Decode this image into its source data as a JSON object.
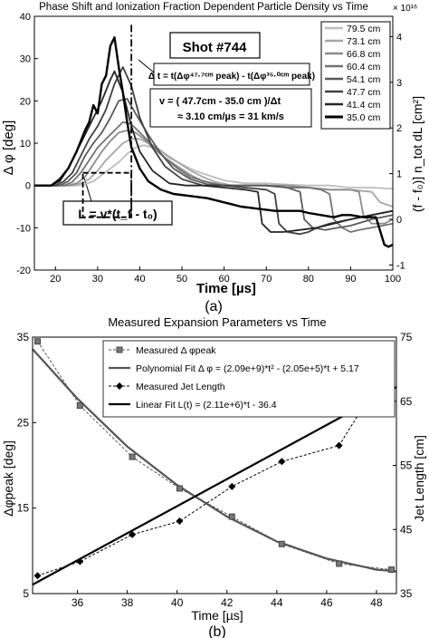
{
  "chart_data": [
    {
      "type": "line",
      "title": "Phase Shift and Ionization Fraction Dependent Particle Density vs Time",
      "panel_label": "(a)",
      "xlabel": "Time [µs]",
      "ylabel": "Δ φ [deg]",
      "ylabel_right": "(f - f₀)] n_tot dL [cm²]",
      "right_axis_multiplier": "× 10¹⁶",
      "xlim": [
        15,
        100
      ],
      "ylim": [
        -20,
        40
      ],
      "ylim_right": [
        -1.111,
        4.444
      ],
      "x_ticks": [
        20,
        30,
        40,
        50,
        60,
        70,
        80,
        90,
        100
      ],
      "y_ticks": [
        -20,
        -10,
        0,
        10,
        20,
        30,
        40
      ],
      "y_ticks_right": [
        -1,
        0,
        1,
        2,
        3,
        4
      ],
      "grid": false,
      "legend_position": "top-right",
      "annotations": {
        "shot": "Shot #744",
        "delta_t": "Δ t = t(Δφ⁴⁷·⁷ᶜᵐ peak) - t(Δφ³⁵·⁰ᶜᵐ peak)",
        "velocity_1": "v = ( 47.7cm - 35.0 cm )/Δt",
        "velocity_2": "≈ 3.10 cm/µs = 31 km/s",
        "length": "L = v*(t_f - t₀)"
      },
      "series": [
        {
          "name": "79.5 cm",
          "color": "#bdbdbd",
          "width": 1.8,
          "x": [
            15,
            25,
            27,
            29,
            31,
            33,
            35,
            37,
            39,
            41,
            43,
            45,
            47,
            50,
            53,
            56,
            60,
            65,
            70,
            75,
            80,
            85,
            90,
            95,
            100
          ],
          "y": [
            0,
            0,
            0.3,
            1,
            2.5,
            4,
            5.5,
            7.5,
            9,
            9.5,
            9,
            8,
            6.5,
            5,
            3.5,
            2.5,
            1.2,
            0.5,
            0.5,
            0.2,
            0,
            0,
            -0.5,
            -0.5,
            -0.8
          ]
        },
        {
          "name": "73.1 cm",
          "color": "#a6a6a6",
          "width": 1.8,
          "x": [
            15,
            24,
            26,
            28,
            30,
            32,
            34,
            36,
            38,
            40,
            42,
            44,
            46,
            49,
            52,
            55,
            58,
            62,
            66,
            70,
            75,
            80,
            85,
            90,
            95,
            97,
            100
          ],
          "y": [
            0,
            0,
            0.5,
            1.5,
            3.5,
            6,
            8,
            10,
            11,
            11,
            10,
            9,
            7.5,
            5.5,
            3.5,
            2,
            0.8,
            0,
            0,
            0,
            -0.5,
            -0.5,
            -1,
            -1,
            -1.5,
            -4,
            -5
          ]
        },
        {
          "name": "66.8 cm",
          "color": "#8c8c8c",
          "width": 1.8,
          "x": [
            15,
            23,
            25,
            27,
            29,
            31,
            33,
            35,
            37,
            39,
            41,
            43,
            46,
            49,
            52,
            55,
            60,
            65,
            70,
            75,
            80,
            85,
            90,
            92,
            93,
            95,
            98,
            100
          ],
          "y": [
            0,
            0,
            0.5,
            2,
            5,
            8,
            10.5,
            12.5,
            13,
            12.5,
            11,
            9,
            6.5,
            4.5,
            2.5,
            1,
            0,
            0,
            0,
            0,
            -0.5,
            -1,
            -1,
            -1.5,
            -7,
            -9,
            -9,
            -8
          ]
        },
        {
          "name": "60.4 cm",
          "color": "#737373",
          "width": 1.8,
          "x": [
            15,
            22,
            24,
            26,
            28,
            30,
            32,
            34,
            36,
            38,
            40,
            43,
            46,
            49,
            52,
            56,
            60,
            65,
            70,
            75,
            80,
            83,
            85,
            86,
            88,
            90,
            92,
            95,
            100
          ],
          "y": [
            0,
            0,
            0.8,
            3,
            6,
            9,
            11,
            13,
            15,
            14.5,
            12.5,
            9.5,
            6.5,
            4,
            2,
            0.8,
            0,
            0,
            0,
            -0.5,
            -0.5,
            -1,
            -2,
            -8,
            -10,
            -11,
            -10.5,
            -10,
            -9
          ]
        },
        {
          "name": "54.1 cm",
          "color": "#5a5a5a",
          "width": 1.8,
          "x": [
            15,
            21,
            23,
            25,
            27,
            29,
            31,
            33,
            35,
            37,
            39,
            42,
            45,
            48,
            52,
            56,
            60,
            65,
            70,
            75,
            78,
            79,
            81,
            84,
            87,
            90,
            95,
            100
          ],
          "y": [
            0,
            0,
            1,
            3,
            7,
            10,
            12.5,
            16,
            20,
            20.5,
            17,
            12,
            7.5,
            4,
            1.5,
            0.3,
            0,
            0,
            0,
            -0.5,
            -1.5,
            -8,
            -10,
            -10.5,
            -10,
            -9.5,
            -8,
            -7
          ]
        },
        {
          "name": "47.7 cm",
          "color": "#404040",
          "width": 1.8,
          "x": [
            15,
            20,
            22,
            24,
            26,
            28,
            30,
            32,
            34,
            36,
            38,
            40,
            43,
            46,
            50,
            55,
            60,
            65,
            70,
            72,
            73,
            75,
            78,
            80,
            82,
            85,
            90,
            95,
            100
          ],
          "y": [
            0,
            0,
            1,
            3,
            7,
            11,
            14,
            18,
            24,
            28,
            23.5,
            16,
            9,
            4.5,
            1.5,
            0,
            0,
            -0.5,
            -1,
            -2,
            -9,
            -11,
            -11.5,
            -11,
            -10,
            -9,
            -8,
            -7,
            -6
          ]
        },
        {
          "name": "41.4 cm",
          "color": "#262626",
          "width": 1.8,
          "x": [
            15,
            19,
            21,
            23,
            25,
            27,
            29,
            31,
            33,
            34,
            36,
            38,
            40,
            43,
            47,
            51,
            55,
            60,
            65,
            68,
            69,
            71,
            74,
            78,
            82,
            86,
            90,
            95,
            100
          ],
          "y": [
            0,
            0,
            1,
            4,
            8,
            12,
            16,
            20,
            25,
            27,
            22,
            14,
            8,
            3.5,
            0.5,
            0,
            0,
            -0.5,
            -1,
            -1.5,
            -9,
            -11,
            -11,
            -10.5,
            -10,
            -9,
            -8,
            -7,
            -6
          ]
        },
        {
          "name": "35.0 cm",
          "color": "#000000",
          "width": 2.4,
          "x": [
            15,
            19,
            21,
            23,
            25,
            27,
            28,
            29,
            30,
            31,
            32,
            33,
            34,
            35,
            36,
            37,
            38,
            40,
            42,
            45,
            48,
            52,
            56,
            60,
            64,
            68,
            72,
            76,
            78,
            80,
            83,
            86,
            88,
            90,
            93,
            96,
            98,
            99,
            100
          ],
          "y": [
            0,
            0,
            1.5,
            4,
            8,
            13,
            15,
            19,
            17,
            24,
            26,
            33,
            35,
            28,
            22,
            15,
            9,
            4,
            1,
            -1,
            -2,
            -2.5,
            -3,
            -4,
            -5,
            -5.5,
            -6,
            -6,
            -6,
            -6.5,
            -7,
            -7.5,
            -7,
            -7,
            -7.5,
            -7.5,
            -14,
            -14.5,
            -14
          ]
        }
      ]
    },
    {
      "type": "line",
      "title": "Measured Expansion Parameters vs Time",
      "panel_label": "(b)",
      "xlabel": "Time  [µs]",
      "ylabel": "Δφpeak [deg]",
      "ylabel_right": "Jet Length [cm]",
      "xlim": [
        34.2,
        48.8
      ],
      "ylim": [
        5,
        35
      ],
      "ylim_right": [
        35,
        75
      ],
      "x_ticks": [
        36,
        38,
        40,
        42,
        44,
        46,
        48
      ],
      "y_ticks": [
        5,
        15,
        25,
        35
      ],
      "y_ticks_right": [
        35,
        45,
        55,
        65,
        75
      ],
      "grid": false,
      "legend_position": "top-right",
      "series": [
        {
          "name": "Measured Δ φpeak",
          "axis": "left",
          "color": "#555555",
          "style": "dash-square",
          "x": [
            34.4,
            36.1,
            38.2,
            40.1,
            42.2,
            44.2,
            46.5,
            48.6
          ],
          "y": [
            34.5,
            27,
            21,
            17.3,
            14,
            10.8,
            8.5,
            7.8
          ]
        },
        {
          "name": "Polynomial Fit Δ φ = (2.09e+9)*t² - (2.05e+5)*t + 5.17",
          "axis": "left",
          "color": "#555555",
          "style": "solid-thick",
          "x": [
            34.2,
            36,
            38,
            40,
            42,
            44,
            46,
            48,
            48.8
          ],
          "y": [
            33.6,
            27.8,
            22.2,
            17.7,
            14,
            11.1,
            9.1,
            7.8,
            7.6
          ]
        },
        {
          "name": "Measured Jet Length",
          "axis": "right",
          "color": "#000000",
          "style": "dash-diamond",
          "x": [
            34.4,
            36.1,
            38.2,
            40.1,
            42.2,
            44.2,
            46.5,
            48.6
          ],
          "y": [
            37.8,
            40,
            44.2,
            46.3,
            51.7,
            55.6,
            58.1,
            71.2
          ]
        },
        {
          "name": "Linear Fit L(t) = (2.11e+6)*t - 36.4",
          "axis": "right",
          "color": "#000000",
          "style": "solid-thick",
          "x": [
            34.2,
            48.8
          ],
          "y": [
            36.4,
            67.2
          ]
        }
      ]
    }
  ]
}
